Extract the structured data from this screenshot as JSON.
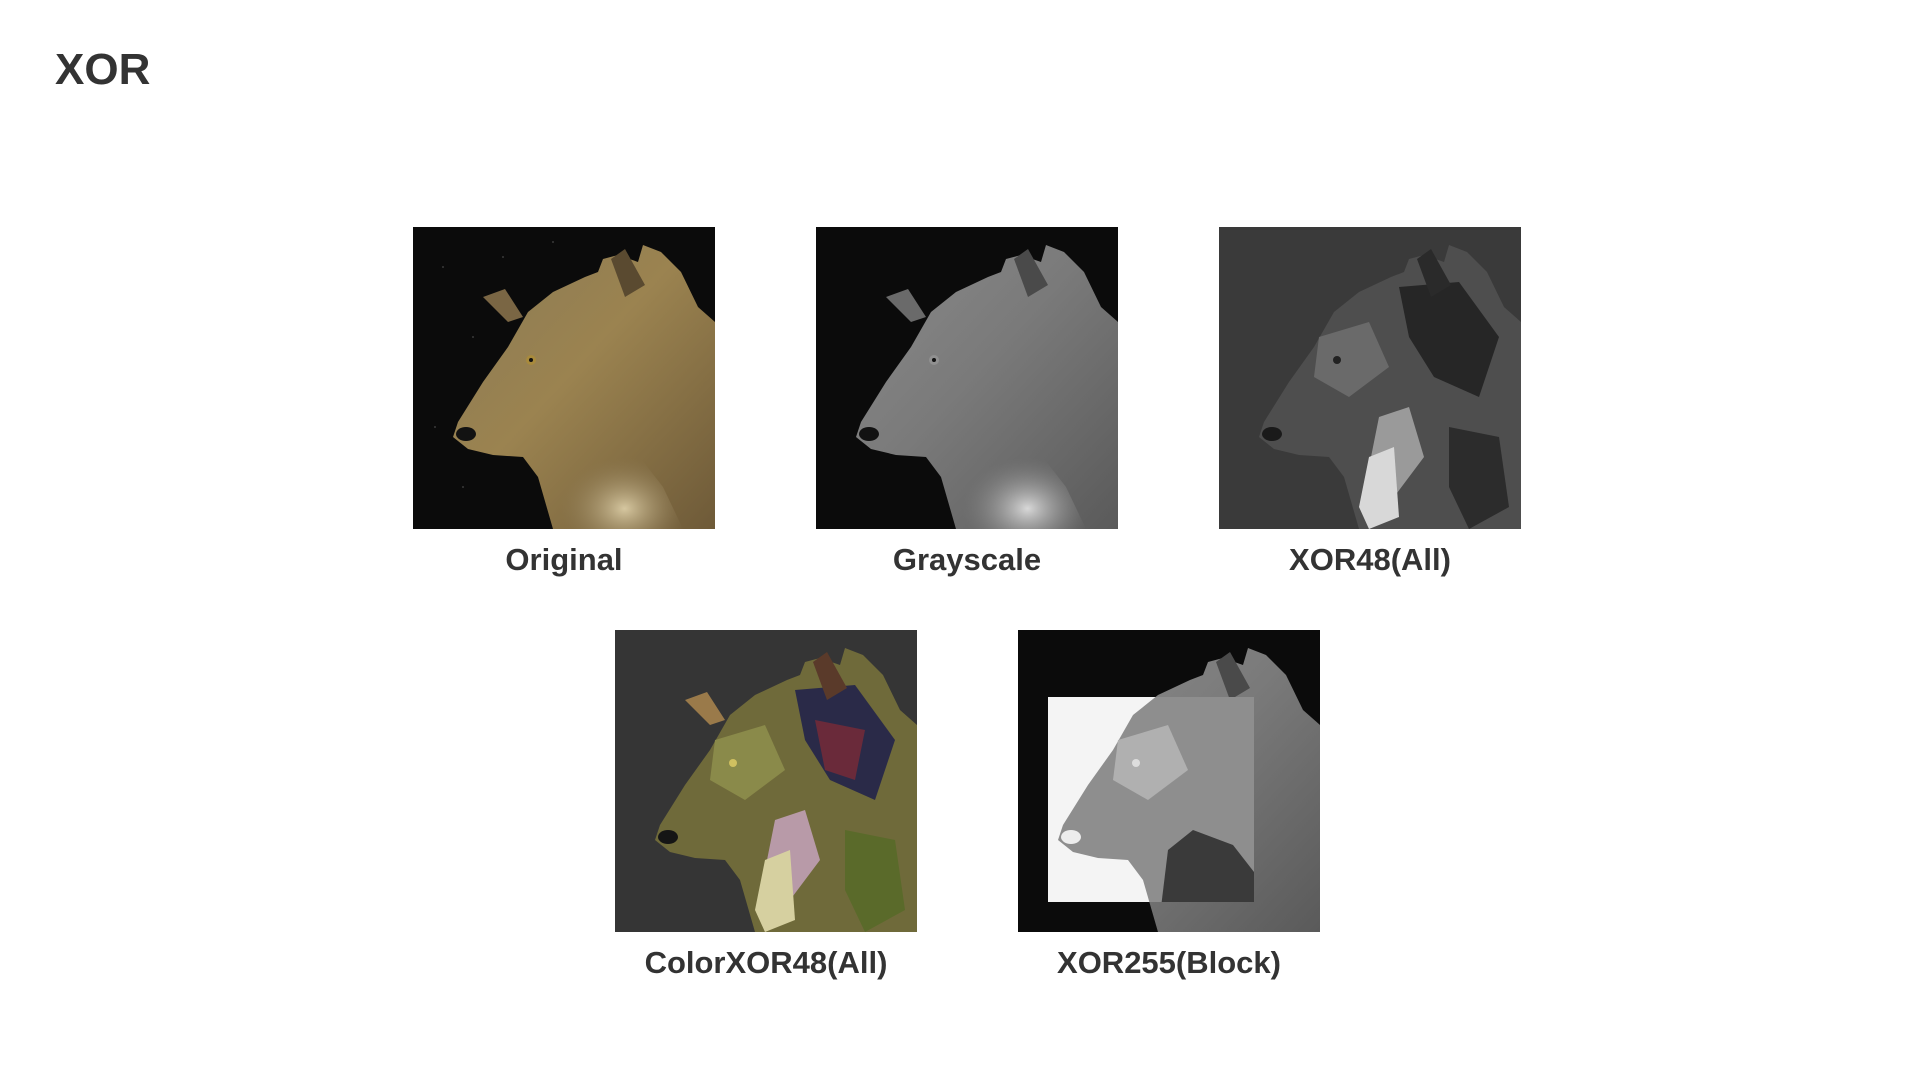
{
  "page": {
    "title": "XOR"
  },
  "panels": [
    {
      "caption": "Original",
      "image": "wolf-photo-original"
    },
    {
      "caption": "Grayscale",
      "image": "wolf-photo-grayscale"
    },
    {
      "caption": "XOR48(All)",
      "image": "wolf-photo-xor48-all"
    },
    {
      "caption": "ColorXOR48(All)",
      "image": "wolf-photo-colorxor48-all"
    },
    {
      "caption": "XOR255(Block)",
      "image": "wolf-photo-xor255-block"
    }
  ]
}
